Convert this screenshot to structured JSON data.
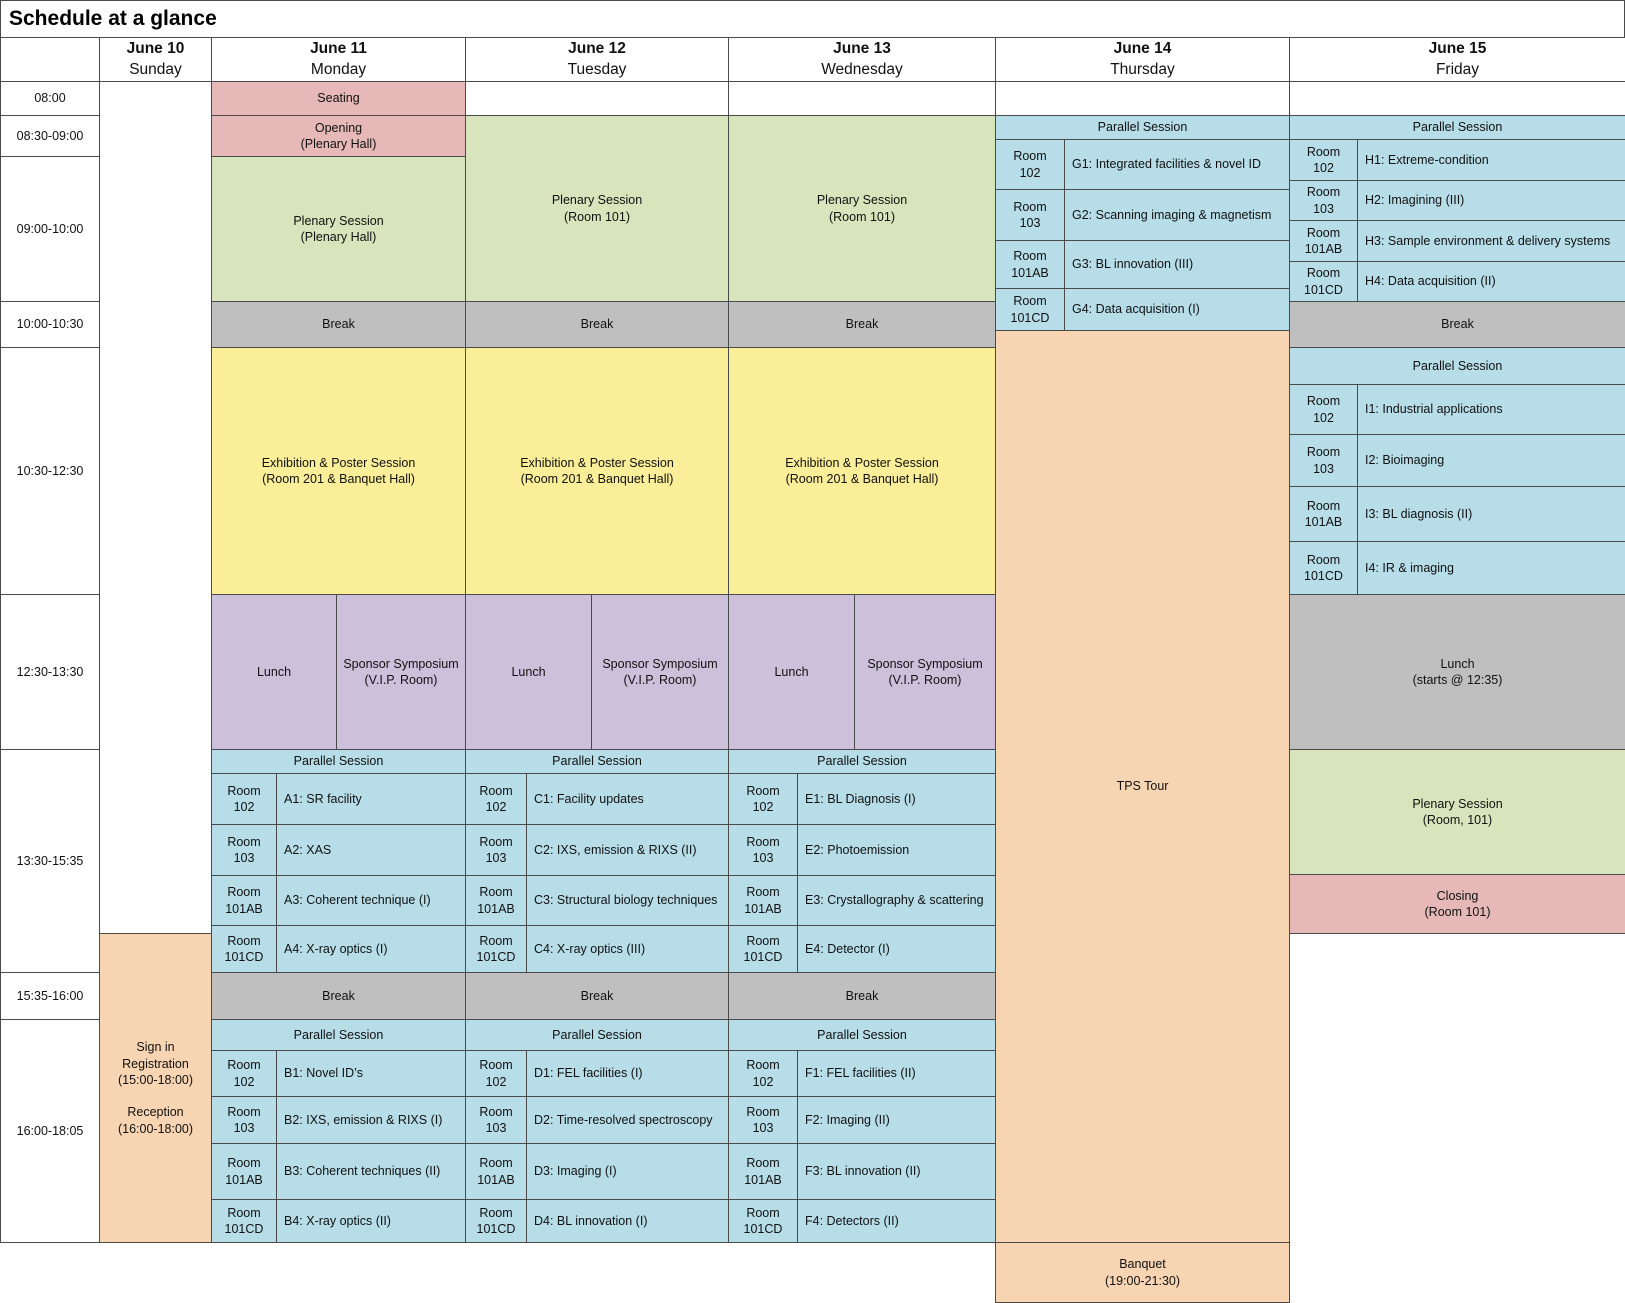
{
  "title": "Schedule at a glance",
  "days": [
    {
      "date": "June 10",
      "weekday": "Sunday"
    },
    {
      "date": "June 11",
      "weekday": "Monday"
    },
    {
      "date": "June 12",
      "weekday": "Tuesday"
    },
    {
      "date": "June 13",
      "weekday": "Wednesday"
    },
    {
      "date": "June 14",
      "weekday": "Thursday"
    },
    {
      "date": "June 15",
      "weekday": "Friday"
    }
  ],
  "times": [
    "08:00",
    "08:30-09:00",
    "09:00-10:00",
    "10:00-10:30",
    "10:30-12:30",
    "12:30-13:30",
    "13:30-15:35",
    "15:35-16:00",
    "16:00-18:05"
  ],
  "colors": {
    "ceremony": "#e6b8b8",
    "plenary": "#d8e4bc",
    "break": "#bfbfbf",
    "exhibition": "#fbee98",
    "lunch": "#ccc0da",
    "parallel": "#b7dde8",
    "social": "#f8d5b2"
  },
  "events": {
    "seating": "Seating",
    "opening": "Opening\n(Plenary Hall)",
    "plenary_hall": "Plenary Session\n(Plenary Hall)",
    "plenary_101": "Plenary Session\n(Room 101)",
    "plenary_fri": "Plenary Session\n(Room, 101)",
    "break": "Break",
    "exhibition": "Exhibition & Poster Session\n(Room 201 & Banquet Hall)",
    "lunch": "Lunch",
    "sponsor": "Sponsor Symposium\n(V.I.P. Room)",
    "lunch_fri": "Lunch\n(starts @ 12:35)",
    "parallel": "Parallel Session",
    "tps_tour": "TPS Tour",
    "banquet": "Banquet\n(19:00-21:30)",
    "closing": "Closing\n(Room 101)",
    "sign_in": "Sign in\nRegistration\n(15:00-18:00)\n\nReception\n(16:00-18:00)"
  },
  "rooms": [
    "Room\n102",
    "Room\n103",
    "Room\n101AB",
    "Room\n101CD"
  ],
  "sessions": {
    "A": [
      "A1: SR facility",
      "A2: XAS",
      "A3: Coherent technique (I)",
      "A4: X-ray optics (I)"
    ],
    "B": [
      "B1: Novel ID’s",
      "B2: IXS, emission & RIXS (I)",
      "B3: Coherent techniques (II)",
      "B4: X-ray optics (II)"
    ],
    "C": [
      "C1: Facility updates",
      "C2: IXS, emission & RIXS (II)",
      "C3: Structural biology techniques",
      "C4: X-ray optics (III)"
    ],
    "D": [
      "D1: FEL facilities (I)",
      "D2: Time-resolved spectroscopy",
      "D3: Imaging (I)",
      "D4: BL innovation (I)"
    ],
    "E": [
      "E1: BL Diagnosis (I)",
      "E2: Photoemission",
      "E3: Crystallography & scattering",
      "E4: Detector (I)"
    ],
    "F": [
      "F1: FEL facilities (II)",
      "F2: Imaging (II)",
      "F3: BL  innovation (II)",
      "F4: Detectors (II)"
    ],
    "G": [
      "G1: Integrated facilities & novel ID",
      "G2: Scanning imaging & magnetism",
      "G3: BL innovation (III)",
      "G4: Data acquisition (I)"
    ],
    "H": [
      "H1: Extreme-condition",
      "H2: Imagining (III)",
      "H3: Sample environment & delivery systems",
      "H4: Data acquisition (II)"
    ],
    "I": [
      "I1: Industrial applications",
      "I2: Bioimaging",
      "I3: BL diagnosis (II)",
      "I4: IR & imaging"
    ]
  }
}
